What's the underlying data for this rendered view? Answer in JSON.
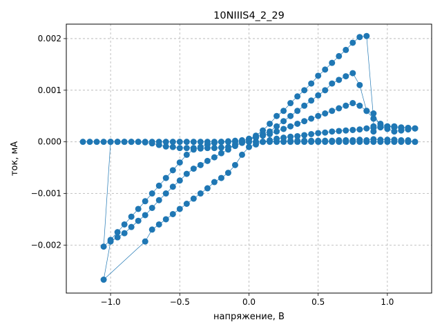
{
  "chart_data": {
    "type": "scatter",
    "title": "10NIIIS4_2_29",
    "xlabel": "напряжение, В",
    "ylabel": "ток, мА",
    "xlim": [
      -1.32,
      1.32
    ],
    "ylim": [
      -0.00293,
      0.00228
    ],
    "xticks": [
      -1.0,
      -0.5,
      0.0,
      0.5,
      1.0
    ],
    "xtick_labels": [
      "−1.0",
      "−0.5",
      "0.0",
      "0.5",
      "1.0"
    ],
    "yticks": [
      -0.002,
      -0.001,
      0.0,
      0.001,
      0.002
    ],
    "ytick_labels": [
      "−0.002",
      "−0.001",
      "0.000",
      "0.001",
      "0.002"
    ],
    "grid": true,
    "color": "#1f77b4",
    "series": [
      {
        "values": [
          [
            -1.2,
            0.0
          ],
          [
            -1.15,
            0.0
          ],
          [
            -1.1,
            0.0
          ],
          [
            -1.05,
            0.0
          ],
          [
            -1.0,
            0.0
          ],
          [
            -0.95,
            0.0
          ],
          [
            -0.9,
            0.0
          ],
          [
            -0.85,
            0.0
          ],
          [
            -0.8,
            0.0
          ],
          [
            -0.75,
            0.0
          ],
          [
            -0.7,
            0.0
          ],
          [
            -0.65,
            0.0
          ],
          [
            -0.6,
            0.0
          ],
          [
            -0.55,
            0.0
          ],
          [
            -0.5,
            0.0
          ],
          [
            -0.45,
            0.0
          ],
          [
            -0.4,
            0.0
          ],
          [
            -0.35,
            0.0
          ],
          [
            -0.3,
            0.0
          ],
          [
            -0.25,
            0.0
          ],
          [
            -0.2,
            0.0
          ],
          [
            -0.15,
            0.0
          ],
          [
            -0.1,
            0.0
          ],
          [
            -0.05,
            0.0
          ],
          [
            0.0,
            0.0
          ],
          [
            0.05,
            0.0
          ],
          [
            0.1,
            0.0
          ],
          [
            0.15,
            0.0
          ],
          [
            0.2,
            0.0
          ],
          [
            0.25,
            0.0
          ],
          [
            0.3,
            0.0
          ],
          [
            0.35,
            0.0
          ],
          [
            0.4,
            0.0
          ],
          [
            0.45,
            0.0
          ],
          [
            0.5,
            0.0
          ],
          [
            0.55,
            0.0
          ],
          [
            0.6,
            0.0
          ],
          [
            0.65,
            0.0
          ],
          [
            0.7,
            0.0
          ],
          [
            0.75,
            0.0
          ],
          [
            0.8,
            0.0
          ],
          [
            0.85,
            0.0
          ],
          [
            0.9,
            0.0
          ],
          [
            0.95,
            0.0
          ],
          [
            1.0,
            0.0
          ],
          [
            1.05,
            0.0
          ],
          [
            1.1,
            0.0
          ],
          [
            1.15,
            0.0
          ],
          [
            1.2,
            0.0
          ]
        ]
      },
      {
        "values": [
          [
            1.2,
            0.0
          ],
          [
            1.15,
            3e-05
          ],
          [
            1.1,
            3e-05
          ],
          [
            1.05,
            4e-05
          ],
          [
            1.0,
            4e-05
          ],
          [
            0.95,
            4e-05
          ],
          [
            0.9,
            5e-05
          ],
          [
            0.85,
            3e-05
          ],
          [
            0.8,
            4e-05
          ],
          [
            0.75,
            3e-05
          ],
          [
            0.7,
            3e-05
          ],
          [
            0.65,
            3e-05
          ],
          [
            0.6,
            2e-05
          ],
          [
            0.55,
            2e-05
          ],
          [
            0.5,
            2e-05
          ],
          [
            0.45,
            2e-05
          ],
          [
            0.4,
            2e-05
          ],
          [
            0.35,
            2e-05
          ],
          [
            0.3,
            2e-05
          ],
          [
            0.25,
            1e-05
          ],
          [
            0.2,
            1e-05
          ],
          [
            0.15,
            1e-05
          ],
          [
            0.1,
            0.0
          ],
          [
            0.05,
            0.0
          ],
          [
            0.0,
            0.0
          ],
          [
            -0.05,
            -2e-05
          ],
          [
            -0.1,
            -8e-05
          ],
          [
            -0.15,
            -0.0001
          ],
          [
            -0.2,
            -0.00011
          ],
          [
            -0.25,
            -0.00012
          ],
          [
            -0.3,
            -0.00012
          ],
          [
            -0.35,
            -0.00013
          ],
          [
            -0.4,
            -0.00012
          ],
          [
            -0.45,
            -0.00012
          ],
          [
            -0.5,
            -0.00012
          ],
          [
            -0.55,
            -0.0001
          ],
          [
            -0.6,
            -9e-05
          ],
          [
            -0.65,
            -6e-05
          ],
          [
            -0.7,
            -3e-05
          ],
          [
            -0.75,
            -1e-05
          ],
          [
            -0.8,
            0.0
          ],
          [
            -0.85,
            0.0
          ],
          [
            -0.9,
            0.0
          ],
          [
            -0.95,
            0.0
          ],
          [
            -1.0,
            0.0
          ],
          [
            -1.05,
            -0.00203
          ],
          [
            -1.0,
            -0.0019
          ],
          [
            -0.95,
            -0.00175
          ],
          [
            -0.9,
            -0.0016
          ],
          [
            -0.85,
            -0.00145
          ],
          [
            -0.8,
            -0.0013
          ],
          [
            -0.75,
            -0.00115
          ],
          [
            -0.7,
            -0.001
          ],
          [
            -0.65,
            -0.00085
          ],
          [
            -0.6,
            -0.0007
          ],
          [
            -0.55,
            -0.00055
          ],
          [
            -0.5,
            -0.0004
          ],
          [
            -0.45,
            -0.00025
          ],
          [
            -0.4,
            -0.00015
          ],
          [
            -0.35,
            -0.0001
          ],
          [
            -0.3,
            -5e-05
          ],
          [
            -0.25,
            -2e-05
          ],
          [
            -0.2,
            0.0
          ],
          [
            -0.15,
            1e-05
          ],
          [
            -0.1,
            2e-05
          ],
          [
            -0.05,
            3e-05
          ],
          [
            0.0,
            5e-05
          ],
          [
            0.05,
            8e-05
          ],
          [
            0.1,
            0.00012
          ],
          [
            0.15,
            0.00015
          ],
          [
            0.2,
            0.0002
          ],
          [
            0.25,
            0.00025
          ],
          [
            0.3,
            0.0003
          ],
          [
            0.35,
            0.00035
          ],
          [
            0.4,
            0.0004
          ],
          [
            0.45,
            0.00045
          ],
          [
            0.5,
            0.0005
          ],
          [
            0.55,
            0.00055
          ],
          [
            0.6,
            0.0006
          ],
          [
            0.65,
            0.00065
          ],
          [
            0.7,
            0.0007
          ],
          [
            0.75,
            0.00075
          ],
          [
            0.8,
            0.0007
          ],
          [
            0.85,
            0.0006
          ],
          [
            0.9,
            0.00045
          ],
          [
            0.95,
            0.00035
          ],
          [
            1.0,
            0.0003
          ],
          [
            1.05,
            0.00028
          ],
          [
            1.1,
            0.00027
          ],
          [
            1.15,
            0.00027
          ],
          [
            1.2,
            0.00026
          ]
        ]
      },
      {
        "values": [
          [
            1.2,
            0.00026
          ],
          [
            1.15,
            0.00027
          ],
          [
            1.1,
            0.00028
          ],
          [
            1.05,
            0.0003
          ],
          [
            1.0,
            0.0003
          ],
          [
            0.95,
            0.00028
          ],
          [
            0.9,
            0.00027
          ],
          [
            0.85,
            0.00026
          ],
          [
            0.8,
            0.00024
          ],
          [
            0.75,
            0.00023
          ],
          [
            0.7,
            0.00022
          ],
          [
            0.65,
            0.00021
          ],
          [
            0.6,
            0.0002
          ],
          [
            0.55,
            0.00018
          ],
          [
            0.5,
            0.00017
          ],
          [
            0.45,
            0.00015
          ],
          [
            0.4,
            0.00013
          ],
          [
            0.35,
            0.00011
          ],
          [
            0.3,
            0.0001
          ],
          [
            0.25,
            8e-05
          ],
          [
            0.2,
            6e-05
          ],
          [
            0.15,
            3e-05
          ],
          [
            0.1,
            0.0
          ],
          [
            0.05,
            -5e-05
          ],
          [
            0.0,
            -0.0001
          ],
          [
            -0.05,
            -0.00025
          ],
          [
            -0.1,
            -0.00045
          ],
          [
            -0.15,
            -0.0006
          ],
          [
            -0.2,
            -0.0007
          ],
          [
            -0.25,
            -0.00078
          ],
          [
            -0.3,
            -0.0009
          ],
          [
            -0.35,
            -0.001
          ],
          [
            -0.4,
            -0.0011
          ],
          [
            -0.45,
            -0.0012
          ],
          [
            -0.5,
            -0.0013
          ],
          [
            -0.55,
            -0.0014
          ],
          [
            -0.6,
            -0.0015
          ],
          [
            -0.65,
            -0.0016
          ],
          [
            -0.7,
            -0.0017
          ],
          [
            -0.75,
            -0.00193
          ],
          [
            -1.05,
            -0.00267
          ],
          [
            -1.0,
            -0.00193
          ],
          [
            -0.95,
            -0.00185
          ],
          [
            -0.9,
            -0.00177
          ],
          [
            -0.85,
            -0.00165
          ],
          [
            -0.8,
            -0.00153
          ],
          [
            -0.75,
            -0.00142
          ],
          [
            -0.7,
            -0.00128
          ],
          [
            -0.65,
            -0.00113
          ],
          [
            -0.6,
            -0.001
          ],
          [
            -0.55,
            -0.00087
          ],
          [
            -0.5,
            -0.00075
          ],
          [
            -0.45,
            -0.00062
          ],
          [
            -0.4,
            -0.00052
          ],
          [
            -0.35,
            -0.00045
          ],
          [
            -0.3,
            -0.00037
          ],
          [
            -0.25,
            -0.0003
          ],
          [
            -0.2,
            -0.00022
          ],
          [
            -0.15,
            -0.00015
          ],
          [
            -0.1,
            -5e-05
          ],
          [
            -0.05,
            0.0
          ],
          [
            0.0,
            5e-05
          ],
          [
            0.05,
            0.0001
          ],
          [
            0.1,
            0.00015
          ],
          [
            0.15,
            0.0002
          ],
          [
            0.2,
            0.0003
          ],
          [
            0.25,
            0.0004
          ],
          [
            0.3,
            0.0005
          ],
          [
            0.35,
            0.0006
          ],
          [
            0.4,
            0.0007
          ],
          [
            0.45,
            0.0008
          ],
          [
            0.5,
            0.0009
          ],
          [
            0.55,
            0.001
          ],
          [
            0.6,
            0.00113
          ],
          [
            0.65,
            0.0012
          ],
          [
            0.7,
            0.00127
          ],
          [
            0.75,
            0.00133
          ],
          [
            0.8,
            0.0011
          ],
          [
            0.85,
            0.0006
          ],
          [
            0.9,
            0.00055
          ],
          [
            0.95,
            0.0003
          ],
          [
            1.0,
            0.00025
          ],
          [
            1.05,
            0.0002
          ],
          [
            1.1,
            0.00022
          ],
          [
            1.15,
            0.00024
          ],
          [
            1.2,
            0.00026
          ]
        ]
      },
      {
        "values": [
          [
            0.0,
            6e-05
          ],
          [
            0.05,
            0.00012
          ],
          [
            0.1,
            0.00022
          ],
          [
            0.15,
            0.00035
          ],
          [
            0.2,
            0.0005
          ],
          [
            0.25,
            0.0006
          ],
          [
            0.3,
            0.00075
          ],
          [
            0.35,
            0.00088
          ],
          [
            0.4,
            0.001
          ],
          [
            0.45,
            0.00113
          ],
          [
            0.5,
            0.00128
          ],
          [
            0.55,
            0.0014
          ],
          [
            0.6,
            0.00153
          ],
          [
            0.65,
            0.00166
          ],
          [
            0.7,
            0.00178
          ],
          [
            0.75,
            0.00192
          ],
          [
            0.8,
            0.00203
          ],
          [
            0.85,
            0.00205
          ],
          [
            0.9,
            0.00045
          ],
          [
            0.9,
            0.0003
          ],
          [
            0.9,
            0.0002
          ]
        ]
      }
    ]
  }
}
